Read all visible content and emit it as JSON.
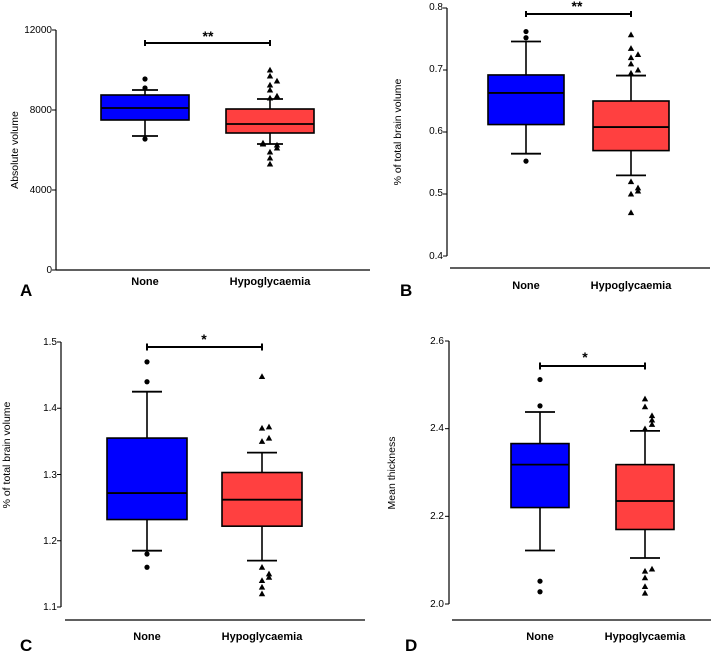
{
  "chart_data": [
    {
      "panel": "A",
      "type": "box",
      "ylabel": "Absolute volume",
      "ylim": [
        0,
        12000
      ],
      "yticks": [
        0,
        4000,
        8000,
        12000
      ],
      "tick_labels": [
        "0",
        "4000",
        "8000",
        "12000"
      ],
      "categories": [
        "None",
        "Hypoglycaemia"
      ],
      "significance": "**",
      "colors": [
        "#0000ff",
        "#ff4040"
      ],
      "boxes": [
        {
          "name": "None",
          "whisker_low": 6700,
          "q1": 7500,
          "median": 8100,
          "q3": 8750,
          "whisker_high": 9000,
          "outliers": [
            6550,
            9100,
            9550
          ]
        },
        {
          "name": "Hypoglycaemia",
          "whisker_low": 6300,
          "q1": 6850,
          "median": 7300,
          "q3": 8050,
          "whisker_high": 8550,
          "outliers": [
            5300,
            5600,
            5900,
            6100,
            6250,
            6350,
            6300,
            8600,
            8700,
            9000,
            9250,
            9450,
            9700,
            10000
          ]
        }
      ]
    },
    {
      "panel": "B",
      "type": "box",
      "ylabel": "% of total brain volume",
      "ylim": [
        0.4,
        0.8
      ],
      "yticks": [
        0.4,
        0.5,
        0.6,
        0.7,
        0.8
      ],
      "tick_labels": [
        "0.4",
        "0.5",
        "0.6",
        "0.7",
        "0.8"
      ],
      "categories": [
        "None",
        "Hypoglycaemia"
      ],
      "significance": "**",
      "colors": [
        "#0000ff",
        "#ff4040"
      ],
      "boxes": [
        {
          "name": "None",
          "whisker_low": 0.565,
          "q1": 0.612,
          "median": 0.663,
          "q3": 0.692,
          "whisker_high": 0.746,
          "outliers": [
            0.553,
            0.752,
            0.762
          ]
        },
        {
          "name": "Hypoglycaemia",
          "whisker_low": 0.53,
          "q1": 0.57,
          "median": 0.608,
          "q3": 0.65,
          "whisker_high": 0.691,
          "outliers": [
            0.47,
            0.5,
            0.505,
            0.51,
            0.52,
            0.695,
            0.7,
            0.71,
            0.72,
            0.725,
            0.735,
            0.757
          ]
        }
      ]
    },
    {
      "panel": "C",
      "type": "box",
      "ylabel": "% of total brain volume",
      "ylim": [
        1.1,
        1.5
      ],
      "yticks": [
        1.1,
        1.2,
        1.3,
        1.4,
        1.5
      ],
      "tick_labels": [
        "1.1",
        "1.2",
        "1.3",
        "1.4",
        "1.5"
      ],
      "categories": [
        "None",
        "Hypoglycaemia"
      ],
      "significance": "*",
      "colors": [
        "#0000ff",
        "#ff4040"
      ],
      "boxes": [
        {
          "name": "None",
          "whisker_low": 1.185,
          "q1": 1.232,
          "median": 1.272,
          "q3": 1.355,
          "whisker_high": 1.425,
          "outliers": [
            1.16,
            1.18,
            1.44,
            1.47
          ]
        },
        {
          "name": "Hypoglycaemia",
          "whisker_low": 1.17,
          "q1": 1.222,
          "median": 1.262,
          "q3": 1.303,
          "whisker_high": 1.333,
          "outliers": [
            1.12,
            1.13,
            1.14,
            1.145,
            1.15,
            1.16,
            1.35,
            1.355,
            1.37,
            1.372,
            1.448
          ]
        }
      ]
    },
    {
      "panel": "D",
      "type": "box",
      "ylabel": "Mean thickness",
      "ylim": [
        2.0,
        2.6
      ],
      "yticks": [
        2.0,
        2.2,
        2.4,
        2.6
      ],
      "tick_labels": [
        "2.0",
        "2.2",
        "2.4",
        "2.6"
      ],
      "categories": [
        "None",
        "Hypoglycaemia"
      ],
      "significance": "*",
      "colors": [
        "#0000ff",
        "#ff4040"
      ],
      "boxes": [
        {
          "name": "None",
          "whisker_low": 2.122,
          "q1": 2.22,
          "median": 2.318,
          "q3": 2.366,
          "whisker_high": 2.438,
          "outliers": [
            2.028,
            2.052,
            2.452,
            2.512
          ]
        },
        {
          "name": "Hypoglycaemia",
          "whisker_low": 2.105,
          "q1": 2.17,
          "median": 2.235,
          "q3": 2.318,
          "whisker_high": 2.395,
          "outliers": [
            2.025,
            2.04,
            2.06,
            2.075,
            2.08,
            2.4,
            2.41,
            2.42,
            2.43,
            2.45,
            2.468
          ]
        }
      ]
    }
  ]
}
